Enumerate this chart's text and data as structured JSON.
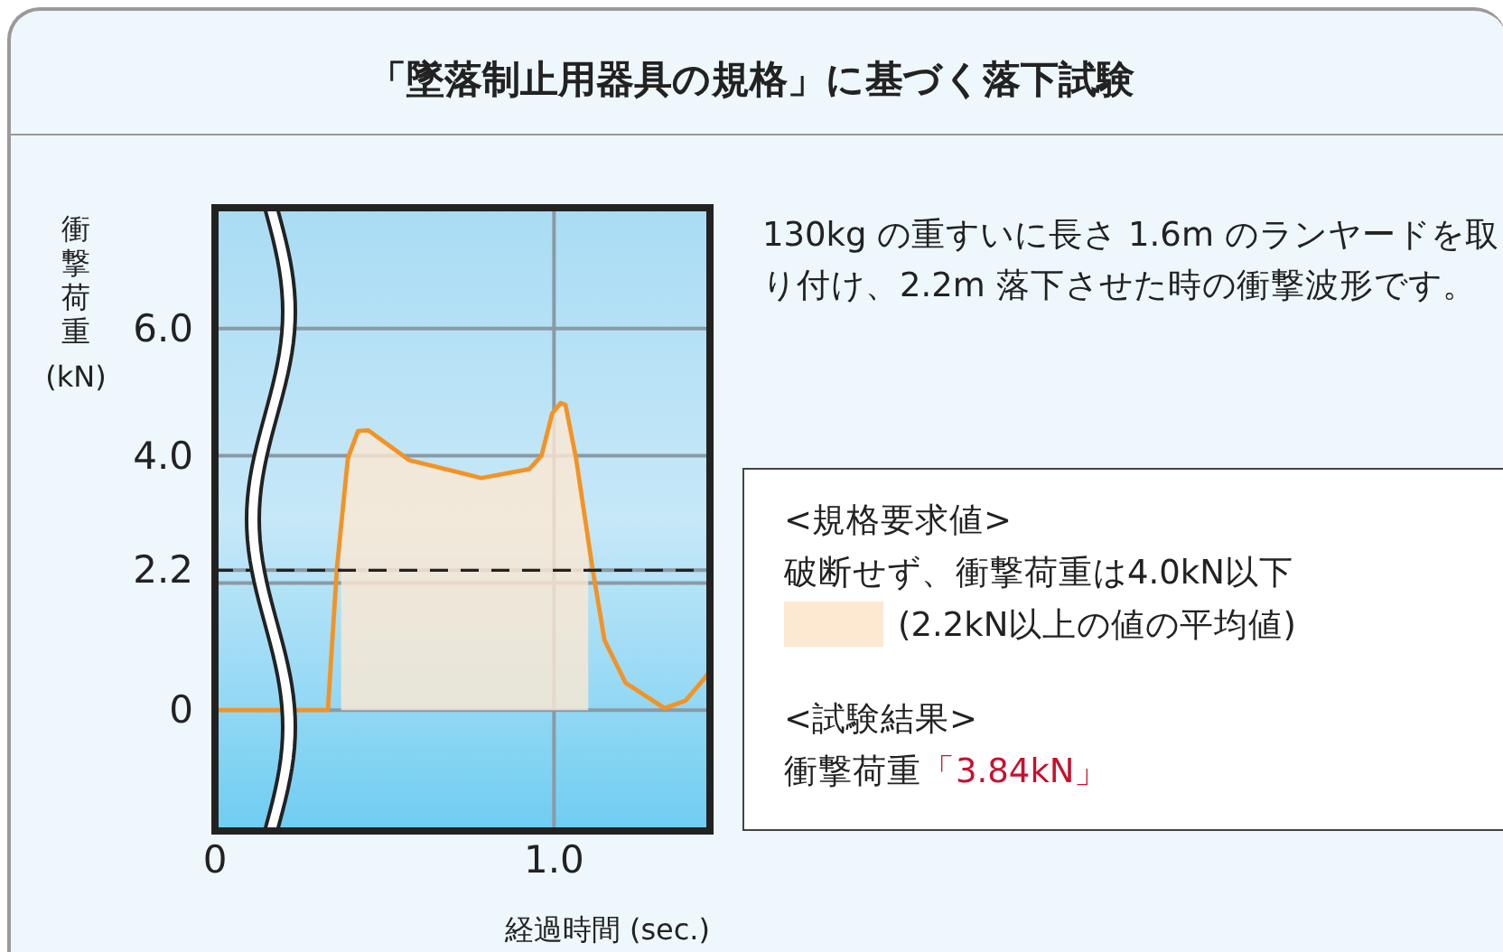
{
  "chart_data": {
    "type": "line",
    "title": "「墜落制止用器具の規格」に基づく落下試験",
    "xlabel": "経過時間 (sec.)",
    "ylabel": "衝撃荷重 (kN)",
    "annotations": [
      "130kg の重すいに長さ 1.6m のランヤードを取り付け、2.2m 落下させた時の衝撃波形です。",
      "<規格要求値>",
      "破断せず、衝撃荷重は4.0kN以下",
      "<試験結果>",
      "衝撃荷重",
      "「3.84kN」"
    ],
    "xlim": [
      0,
      1.46
    ],
    "xticks": [
      0,
      {
        "value": 1,
        "label": "1.0"
      }
    ],
    "ylim": [
      -1.9,
      7.9
    ],
    "yticks": [
      0,
      {
        "value": 2,
        "label": null
      },
      2.2,
      {
        "value": 4,
        "label": "4.0"
      },
      {
        "value": 6,
        "label": "6.0"
      }
    ],
    "grid": true,
    "legend": "right",
    "ref_lines": [
      {
        "axis": "y",
        "value": 2.2,
        "color": "#222222",
        "line_style": "dashed"
      }
    ],
    "series": [
      {
        "type": "area",
        "name": "(2.2kN以上の値の平均値)",
        "color": "#fde8d2",
        "x": [
          0.372,
          0.392,
          0.422,
          0.452,
          0.573,
          0.786,
          0.927,
          0.963,
          0.995,
          1.02,
          1.034,
          1.065,
          1.101
        ],
        "values": [
          2.6,
          3.96,
          4.39,
          4.4,
          3.93,
          3.65,
          3.79,
          4.0,
          4.67,
          4.83,
          4.8,
          3.96,
          2.7
        ]
      },
      {
        "type": "line",
        "color": "#f39325",
        "x": [
          0,
          0.333,
          0.36,
          0.392,
          0.422,
          0.452,
          0.573,
          0.786,
          0.927,
          0.963,
          0.995,
          1.02,
          1.034,
          1.065,
          1.113,
          1.149,
          1.211,
          1.326,
          1.388,
          1.441,
          1.46
        ],
        "values": [
          0,
          0,
          2.25,
          3.96,
          4.39,
          4.4,
          3.93,
          3.65,
          3.79,
          4.0,
          4.67,
          4.83,
          4.8,
          3.96,
          2.25,
          1.1,
          0.43,
          0.03,
          0.15,
          0.48,
          0.62
        ]
      }
    ]
  }
}
